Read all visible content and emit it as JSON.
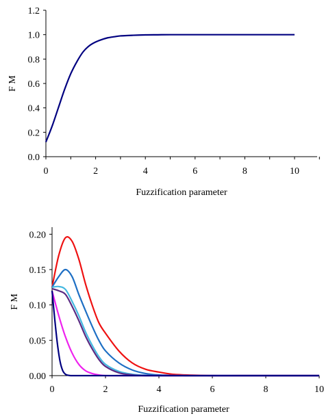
{
  "chart_data": [
    {
      "type": "line",
      "title": "",
      "xlabel": "Fuzzification parameter",
      "ylabel": "F M",
      "xlim": [
        0,
        11
      ],
      "ylim": [
        0,
        1.2
      ],
      "x_ticks": [
        "0",
        "2",
        "4",
        "6",
        "8",
        "10"
      ],
      "y_ticks": [
        "0.0",
        "0.2",
        "0.4",
        "0.6",
        "0.8",
        "1.0",
        "1.2"
      ],
      "grid": false,
      "legend": "none",
      "series": [
        {
          "color": "#000080",
          "x": [
            0,
            0.25,
            0.5,
            0.75,
            1.0,
            1.25,
            1.5,
            1.75,
            2.0,
            2.25,
            2.5,
            2.75,
            3.0,
            3.5,
            4.0,
            4.5,
            5.0,
            6.0,
            7.0,
            8.0,
            9.0,
            10.0
          ],
          "y": [
            0.12,
            0.25,
            0.4,
            0.55,
            0.68,
            0.78,
            0.86,
            0.91,
            0.94,
            0.96,
            0.975,
            0.983,
            0.99,
            0.995,
            0.998,
            0.999,
            1.0,
            1.0,
            1.0,
            1.0,
            1.0,
            1.0
          ]
        }
      ]
    },
    {
      "type": "line",
      "title": "",
      "xlabel": "Fuzzification parameter",
      "ylabel": "F M",
      "xlim": [
        0,
        10
      ],
      "ylim": [
        0,
        0.21
      ],
      "x_ticks": [
        "0",
        "2",
        "4",
        "6",
        "8",
        "10"
      ],
      "y_ticks": [
        "0.00",
        "0.05",
        "0.10",
        "0.15",
        "0.20"
      ],
      "grid": false,
      "legend": "none",
      "series": [
        {
          "color": "#ee1111",
          "x": [
            0,
            0.25,
            0.5,
            0.75,
            1.0,
            1.25,
            1.5,
            1.75,
            2.0,
            2.5,
            3.0,
            3.5,
            4.0,
            4.5,
            5.0,
            6.0,
            7.0,
            8.0,
            10.0
          ],
          "y": [
            0.125,
            0.17,
            0.195,
            0.19,
            0.165,
            0.13,
            0.1,
            0.075,
            0.06,
            0.035,
            0.018,
            0.009,
            0.005,
            0.002,
            0.001,
            0.0,
            0.0,
            0.0,
            0.0
          ]
        },
        {
          "color": "#1e6fc4",
          "x": [
            0,
            0.25,
            0.5,
            0.75,
            1.0,
            1.25,
            1.5,
            1.75,
            2.0,
            2.5,
            3.0,
            3.5,
            4.0,
            5.0,
            6.0,
            7.0,
            8.0,
            10.0
          ],
          "y": [
            0.125,
            0.14,
            0.15,
            0.14,
            0.115,
            0.092,
            0.07,
            0.05,
            0.035,
            0.018,
            0.008,
            0.003,
            0.001,
            0.0,
            0.0,
            0.0,
            0.0,
            0.0
          ]
        },
        {
          "color": "#44b8e0",
          "x": [
            0,
            0.25,
            0.5,
            0.75,
            1.0,
            1.25,
            1.5,
            1.75,
            2.0,
            2.5,
            3.0,
            3.5,
            4.0,
            5.0,
            6.0,
            8.0,
            10.0
          ],
          "y": [
            0.125,
            0.126,
            0.122,
            0.105,
            0.085,
            0.062,
            0.043,
            0.027,
            0.016,
            0.006,
            0.002,
            0.0005,
            0.0,
            0.0,
            0.0,
            0.0,
            0.0
          ]
        },
        {
          "color": "#5a2a82",
          "x": [
            0,
            0.25,
            0.5,
            0.75,
            1.0,
            1.25,
            1.5,
            1.75,
            2.0,
            2.5,
            3.0,
            3.5,
            4.0,
            5.0,
            6.0,
            8.0,
            10.0
          ],
          "y": [
            0.123,
            0.12,
            0.115,
            0.098,
            0.078,
            0.056,
            0.038,
            0.023,
            0.013,
            0.004,
            0.001,
            0.0,
            0.0,
            0.0,
            0.0,
            0.0,
            0.0
          ]
        },
        {
          "color": "#ee22ee",
          "x": [
            0,
            0.25,
            0.5,
            0.75,
            1.0,
            1.25,
            1.5,
            1.75,
            2.0,
            2.5,
            3.0,
            4.0,
            6.0,
            8.0,
            10.0
          ],
          "y": [
            0.12,
            0.085,
            0.055,
            0.032,
            0.016,
            0.007,
            0.003,
            0.001,
            0.0,
            0.0,
            0.0,
            0.0,
            0.0,
            0.0,
            0.0
          ]
        },
        {
          "color": "#000080",
          "x": [
            0,
            0.1,
            0.2,
            0.3,
            0.4,
            0.5,
            0.6,
            0.7,
            0.8,
            1.0,
            1.5,
            2.0,
            3.0,
            4.0,
            6.0,
            8.0,
            10.0
          ],
          "y": [
            0.12,
            0.08,
            0.045,
            0.02,
            0.007,
            0.002,
            0.0005,
            0.0,
            0.0,
            0.0,
            0.0,
            0.0,
            0.0,
            0.0,
            0.0,
            0.0,
            0.0
          ]
        }
      ]
    }
  ]
}
